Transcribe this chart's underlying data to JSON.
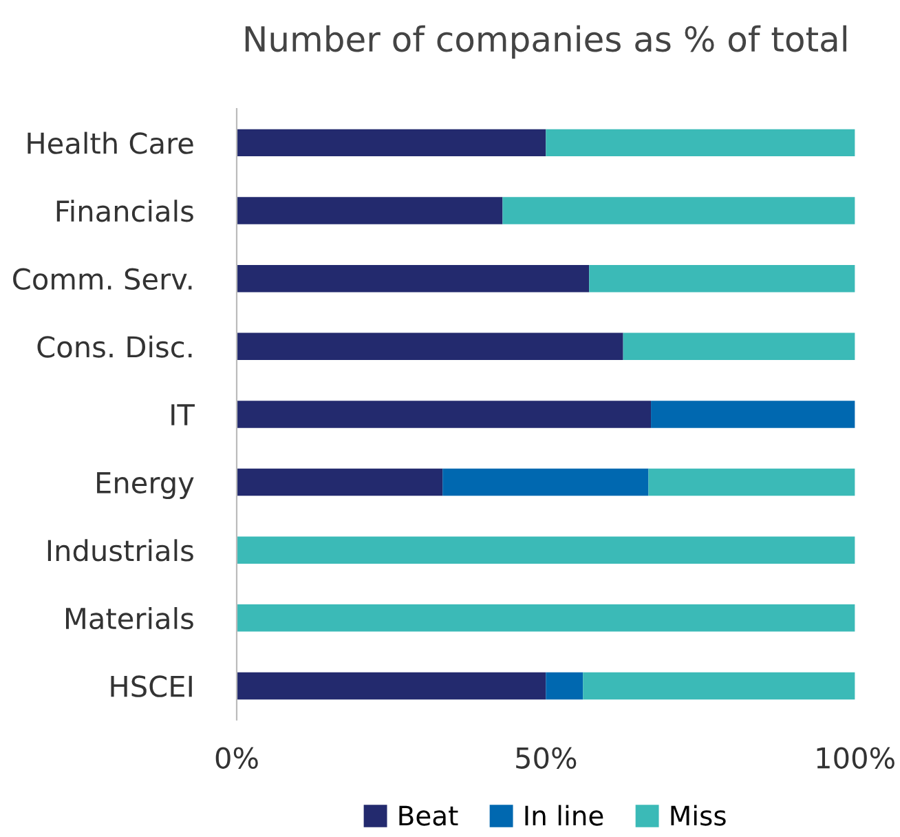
{
  "chart_data": {
    "type": "bar",
    "title": "Number of companies as % of total",
    "orientation": "horizontal",
    "stacked": true,
    "categories": [
      "Health Care",
      "Financials",
      "Comm. Serv.",
      "Cons. Disc.",
      "IT",
      "Energy",
      "Industrials",
      "Materials",
      "HSCEI"
    ],
    "series": [
      {
        "name": "Beat",
        "color": "#232a6e",
        "values": [
          50,
          43,
          57,
          62.5,
          67,
          33.3,
          0,
          0,
          50
        ]
      },
      {
        "name": "In line",
        "color": "#0068b0",
        "values": [
          0,
          0,
          0,
          0,
          33,
          33.3,
          0,
          0,
          6
        ]
      },
      {
        "name": "Miss",
        "color": "#3bbab7",
        "values": [
          50,
          57,
          43,
          37.5,
          0,
          33.4,
          100,
          100,
          44
        ]
      }
    ],
    "xlim": [
      0,
      100
    ],
    "xticks": [
      {
        "value": 0,
        "label": "0%"
      },
      {
        "value": 50,
        "label": "50%"
      },
      {
        "value": 100,
        "label": "100%"
      }
    ],
    "grid": false,
    "legend": "bottom"
  }
}
